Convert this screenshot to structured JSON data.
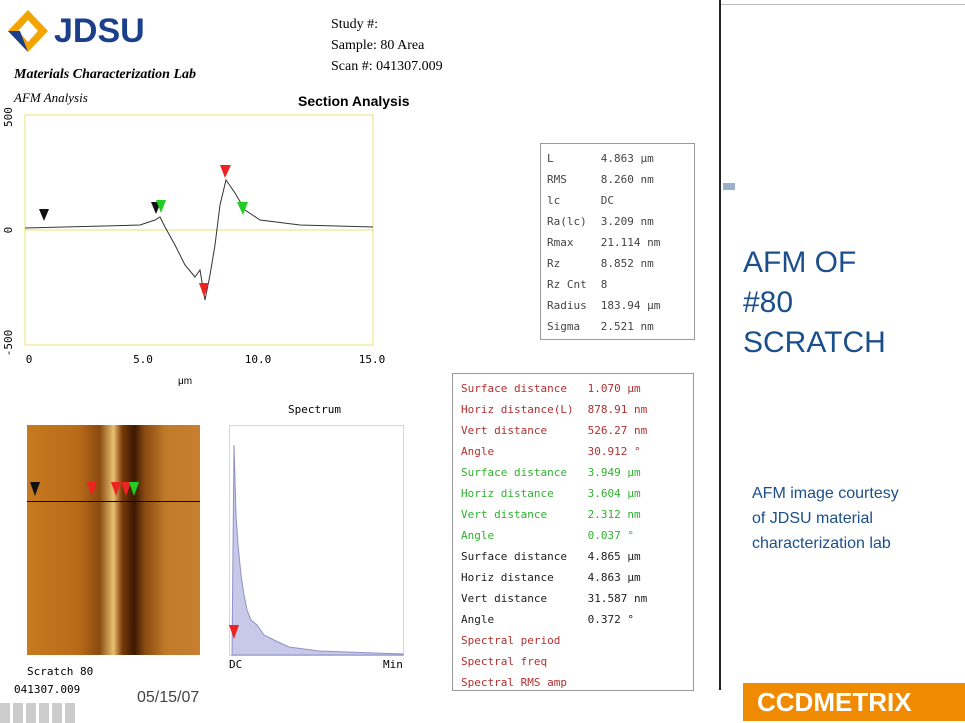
{
  "header": {
    "logo": "JDSU",
    "lab": "Materials Characterization Lab",
    "study": "Study #:",
    "sample": "Sample: 80 Area",
    "scan": "Scan #: 041307.009",
    "analysis": "AFM Analysis",
    "section_title": "Section Analysis"
  },
  "profile": {
    "y_labels": [
      "500",
      "0",
      "-500"
    ],
    "x_labels": [
      "0",
      "5.0",
      "10.0",
      "15.0"
    ],
    "x_unit": "μm"
  },
  "stats": {
    "rows": [
      [
        "L",
        "4.863 μm"
      ],
      [
        "RMS",
        "8.260 nm"
      ],
      [
        "lc",
        "DC"
      ],
      [
        "Ra(lc)",
        "3.209 nm"
      ],
      [
        "Rmax",
        "21.114 nm"
      ],
      [
        "Rz",
        "8.852 nm"
      ],
      [
        "Rz Cnt",
        "8"
      ],
      [
        "Radius",
        "183.94 μm"
      ],
      [
        "Sigma",
        "2.521 nm"
      ]
    ]
  },
  "measurements": {
    "groups": [
      {
        "color": "#b03030",
        "rows": [
          [
            "Surface distance",
            "1.070 μm"
          ],
          [
            "Horiz distance(L)",
            "878.91 nm"
          ],
          [
            "Vert distance",
            "526.27 nm"
          ],
          [
            "Angle",
            "30.912 °"
          ]
        ]
      },
      {
        "color": "#30b030",
        "rows": [
          [
            "Surface distance",
            "3.949 μm"
          ],
          [
            "Horiz distance",
            "3.604 μm"
          ],
          [
            "Vert distance",
            "2.312 nm"
          ],
          [
            "Angle",
            "0.037 °"
          ]
        ]
      },
      {
        "color": "#202020",
        "rows": [
          [
            "Surface distance",
            "4.865 μm"
          ],
          [
            "Horiz distance",
            "4.863 μm"
          ],
          [
            "Vert distance",
            "31.587 nm"
          ],
          [
            "Angle",
            "0.372 °"
          ]
        ]
      },
      {
        "color": "#b03030",
        "rows": [
          [
            "Spectral period"
          ],
          [
            "Spectral freq"
          ],
          [
            "Spectral RMS amp"
          ]
        ]
      }
    ]
  },
  "spectrum": {
    "title": "Spectrum",
    "x_labels": [
      "DC",
      "Min"
    ]
  },
  "image": {
    "caption": "Scratch 80",
    "id": "041307.009"
  },
  "slide": {
    "title_lines": [
      "AFM OF",
      "#80",
      "SCRATCH"
    ],
    "note_lines": [
      "AFM image courtesy",
      "of JDSU material",
      "characterization lab"
    ],
    "date": "05/15/07",
    "brand": "CCDMETRIX"
  }
}
